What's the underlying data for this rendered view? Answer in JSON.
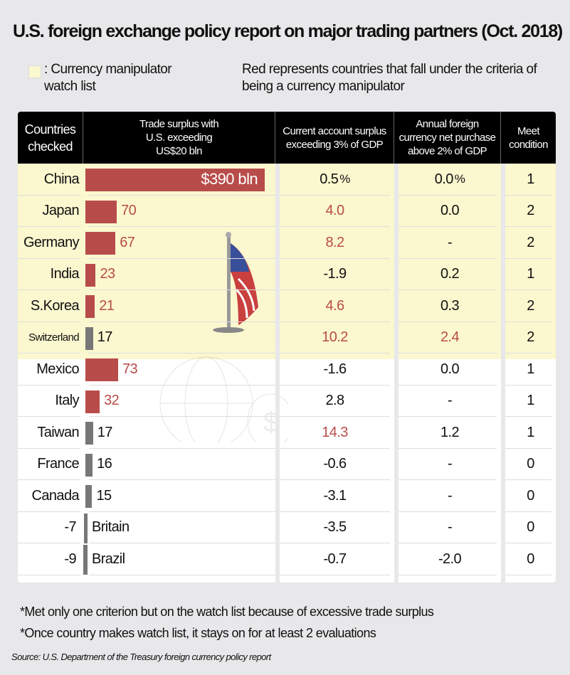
{
  "title": "U.S. foreign exchange policy report on major trading partners (Oct. 2018)",
  "legend": {
    "watch_list": "Currency manipulator watch list",
    "watch_list_color": "#fbf7cf",
    "red_note": "Red represents countries that fall under the criteria of being a currency manipulator",
    "prefix": ": "
  },
  "chart_data": {
    "type": "table",
    "title": "U.S. foreign exchange policy report on major trading partners (Oct. 2018)",
    "columns": [
      "Countries checked",
      "Trade surplus with U.S. exceeding US$20 bln",
      "Current account surplus exceeding 3% of GDP",
      "Annual foreign currency net purchase above 2% of GDP",
      "Meet condition"
    ],
    "units": {
      "trade": "bln",
      "current": "%",
      "purchase": "%"
    },
    "rows": [
      {
        "country": "China",
        "trade": 390,
        "trade_label": "$390 bln",
        "current": "0.5",
        "purchase": "0.0",
        "meet": "1",
        "watch": true,
        "red": [
          true,
          false,
          false
        ]
      },
      {
        "country": "Japan",
        "trade": 70,
        "trade_label": "70",
        "current": "4.0",
        "purchase": "0.0",
        "meet": "2",
        "watch": true,
        "red": [
          true,
          true,
          false
        ]
      },
      {
        "country": "Germany",
        "trade": 67,
        "trade_label": "67",
        "current": "8.2",
        "purchase": "-",
        "meet": "2",
        "watch": true,
        "red": [
          true,
          true,
          false
        ]
      },
      {
        "country": "India",
        "trade": 23,
        "trade_label": "23",
        "current": "-1.9",
        "purchase": "0.2",
        "meet": "1",
        "watch": true,
        "red": [
          true,
          false,
          false
        ]
      },
      {
        "country": "S.Korea",
        "trade": 21,
        "trade_label": "21",
        "current": "4.6",
        "purchase": "0.3",
        "meet": "2",
        "watch": true,
        "red": [
          true,
          true,
          false
        ]
      },
      {
        "country": "Switzerland",
        "trade": 17,
        "trade_label": "17",
        "current": "10.2",
        "purchase": "2.4",
        "meet": "2",
        "watch": true,
        "red": [
          false,
          true,
          true
        ]
      },
      {
        "country": "Mexico",
        "trade": 73,
        "trade_label": "73",
        "current": "-1.6",
        "purchase": "0.0",
        "meet": "1",
        "watch": false,
        "red": [
          true,
          false,
          false
        ]
      },
      {
        "country": "Italy",
        "trade": 32,
        "trade_label": "32",
        "current": "2.8",
        "purchase": "-",
        "meet": "1",
        "watch": false,
        "red": [
          true,
          false,
          false
        ]
      },
      {
        "country": "Taiwan",
        "trade": 17,
        "trade_label": "17",
        "current": "14.3",
        "purchase": "1.2",
        "meet": "1",
        "watch": false,
        "red": [
          false,
          true,
          false
        ]
      },
      {
        "country": "France",
        "trade": 16,
        "trade_label": "16",
        "current": "-0.6",
        "purchase": "-",
        "meet": "0",
        "watch": false,
        "red": [
          false,
          false,
          false
        ]
      },
      {
        "country": "Canada",
        "trade": 15,
        "trade_label": "15",
        "current": "-3.1",
        "purchase": "-",
        "meet": "0",
        "watch": false,
        "red": [
          false,
          false,
          false
        ]
      },
      {
        "country": "Britain",
        "trade": -7,
        "trade_label": "-7",
        "current": "-3.5",
        "purchase": "-",
        "meet": "0",
        "watch": false,
        "red": [
          false,
          false,
          false
        ]
      },
      {
        "country": "Brazil",
        "trade": -9,
        "trade_label": "-9",
        "current": "-0.7",
        "purchase": "-2.0",
        "meet": "0",
        "watch": false,
        "red": [
          false,
          false,
          false
        ]
      }
    ],
    "colors": {
      "red": "#b84c4a",
      "gray": "#777777"
    }
  },
  "footnotes": [
    "*Met only one criterion but on the watch list because of excessive trade surplus",
    "*Once country makes watch list, it stays on for at least 2 evaluations"
  ],
  "source": "Source: U.S. Department of the Treasury foreign currency policy report"
}
